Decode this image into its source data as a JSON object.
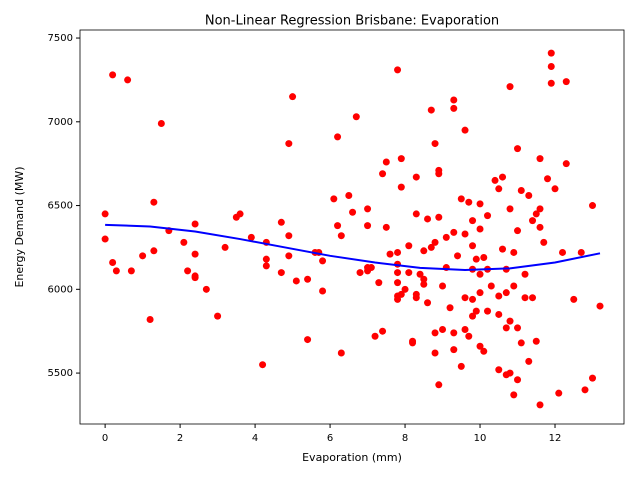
{
  "chart_data": {
    "type": "scatter",
    "title": "Non-Linear Regression Brisbane: Evaporation",
    "xlabel": "Evaporation (mm)",
    "ylabel": "Energy Demand (MW)",
    "color": "#ff0000",
    "x": [
      0,
      0,
      0.2,
      0.2,
      0.3,
      0.6,
      0.7,
      1,
      1.2,
      1.3,
      1.3,
      1.5,
      1.7,
      2.1,
      2.2,
      2.4,
      2.4,
      2.4,
      2.4,
      2.7,
      3,
      3.2,
      3.5,
      3.6,
      3.9,
      4.2,
      4.3,
      4.3,
      4.3,
      4.7,
      4.7,
      4.9,
      4.9,
      4.9,
      5,
      5.1,
      5.4,
      5.4,
      5.6,
      5.7,
      5.8,
      5.8,
      6.1,
      6.2,
      6.2,
      6.3,
      6.3,
      6.5,
      6.6,
      6.7,
      6.8,
      7,
      7,
      7,
      7,
      7.1,
      7.2,
      7.3,
      7.4,
      7.4,
      7.5,
      7.5,
      7.6,
      7.8,
      7.8,
      7.8,
      7.8,
      7.8,
      7.8,
      7.8,
      7.9,
      7.9,
      7.9,
      8,
      8.1,
      8.1,
      8.2,
      8.2,
      8.3,
      8.3,
      8.3,
      8.3,
      8.4,
      8.5,
      8.5,
      8.5,
      8.6,
      8.6,
      8.7,
      8.7,
      8.8,
      8.8,
      8.8,
      8.8,
      8.9,
      8.9,
      8.9,
      8.9,
      9,
      9,
      9.1,
      9.1,
      9.2,
      9.3,
      9.3,
      9.3,
      9.3,
      9.3,
      9.4,
      9.5,
      9.5,
      9.6,
      9.6,
      9.6,
      9.6,
      9.7,
      9.7,
      9.8,
      9.8,
      9.8,
      9.8,
      9.8,
      9.9,
      9.9,
      10,
      10,
      10,
      10,
      10,
      10.1,
      10.1,
      10.2,
      10.2,
      10.2,
      10.3,
      10.4,
      10.5,
      10.5,
      10.5,
      10.5,
      10.6,
      10.6,
      10.7,
      10.7,
      10.7,
      10.7,
      10.8,
      10.8,
      10.8,
      10.8,
      10.9,
      10.9,
      10.9,
      11,
      11,
      11,
      11,
      11.1,
      11.1,
      11.2,
      11.2,
      11.3,
      11.3,
      11.4,
      11.4,
      11.5,
      11.5,
      11.6,
      11.6,
      11.6,
      11.6,
      11.7,
      11.8,
      11.9,
      11.9,
      11.9,
      12,
      12.1,
      12.2,
      12.3,
      12.3,
      12.5,
      12.7,
      12.8,
      13,
      13,
      13.2
    ],
    "values": [
      6450,
      6300,
      7280,
      6160,
      6110,
      7250,
      6110,
      6200,
      5820,
      6520,
      6230,
      6990,
      6350,
      6280,
      6110,
      6390,
      6210,
      6080,
      6070,
      6000,
      5840,
      6250,
      6430,
      6450,
      6310,
      5550,
      6280,
      6180,
      6140,
      6400,
      6100,
      6870,
      6320,
      6200,
      7150,
      6050,
      6060,
      5700,
      6220,
      6220,
      6170,
      5990,
      6540,
      6910,
      6380,
      6320,
      5620,
      6560,
      6460,
      7030,
      6100,
      6480,
      6380,
      6110,
      6130,
      6130,
      5720,
      6040,
      6690,
      5750,
      6760,
      6370,
      6210,
      7310,
      6220,
      6150,
      6100,
      6040,
      5960,
      5940,
      6780,
      6610,
      5970,
      6000,
      6260,
      6100,
      5680,
      5690,
      6670,
      6450,
      5970,
      5950,
      6090,
      6230,
      6060,
      6030,
      6420,
      5920,
      7070,
      6250,
      6870,
      6280,
      5740,
      5620,
      6710,
      6690,
      6430,
      5430,
      6020,
      5760,
      6130,
      6310,
      5890,
      7130,
      7080,
      6340,
      5640,
      5740,
      6200,
      6540,
      5540,
      6950,
      6330,
      5950,
      5760,
      6520,
      5720,
      6410,
      6260,
      6120,
      5940,
      5840,
      6180,
      5870,
      6510,
      6360,
      6090,
      5980,
      5660,
      6190,
      5630,
      6440,
      6120,
      5870,
      6020,
      6650,
      6600,
      5960,
      5850,
      5520,
      6670,
      6240,
      6120,
      5980,
      5770,
      5490,
      7210,
      6480,
      5810,
      5500,
      6220,
      6020,
      5370,
      6840,
      6350,
      5770,
      5460,
      6590,
      5680,
      6090,
      5950,
      6560,
      5570,
      6410,
      5950,
      6450,
      5690,
      6780,
      5310,
      6480,
      6370,
      6280,
      6660,
      7410,
      7330,
      7230,
      6600,
      5380,
      6220,
      7240,
      6750,
      5940,
      6220,
      5400,
      6500,
      5470,
      5900
    ],
    "fit": {
      "color": "#0000ff",
      "x": [
        0,
        1.2,
        2.4,
        3.6,
        4.8,
        6,
        7.2,
        8.4,
        9.6,
        10.8,
        12,
        13.2
      ],
      "values": [
        6385,
        6375,
        6345,
        6300,
        6250,
        6200,
        6160,
        6128,
        6115,
        6125,
        6160,
        6215
      ]
    },
    "xlim": [
      -0.67,
      13.84
    ],
    "ylim": [
      5196,
      7548
    ],
    "xticks": [
      0,
      2,
      4,
      6,
      8,
      10,
      12
    ],
    "yticks": [
      5500,
      6000,
      6500,
      7000,
      7500
    ]
  }
}
